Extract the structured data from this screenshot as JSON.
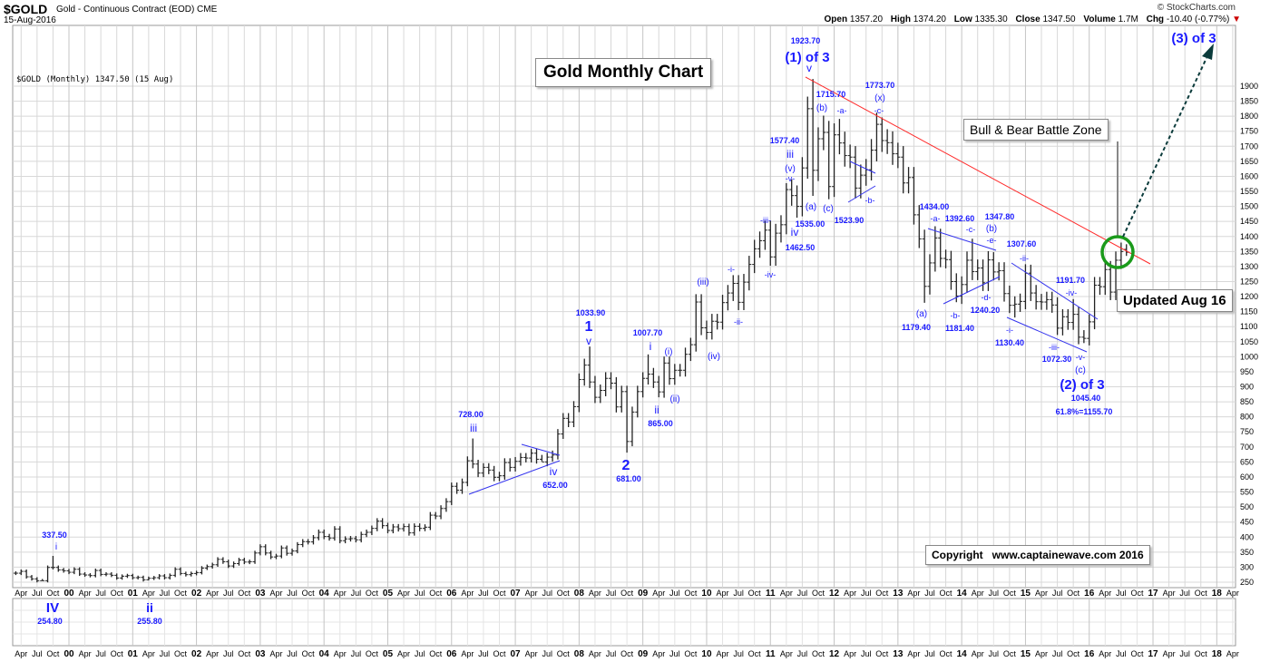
{
  "header": {
    "symbol": "$GOLD",
    "description": "Gold - Continuous Contract (EOD) CME",
    "date": "15-Aug-2016",
    "brand": "© StockCharts.com",
    "open_label": "Open",
    "open": "1357.20",
    "high_label": "High",
    "high": "1374.20",
    "low_label": "Low",
    "low": "1335.30",
    "close_label": "Close",
    "close": "1347.50",
    "volume_label": "Volume",
    "volume": "1.7M",
    "chg_label": "Chg",
    "chg": "-10.40 (-0.77%)",
    "chg_direction": "down"
  },
  "chart_data": {
    "type": "ohlc-bar",
    "title": "Gold Monthly Chart",
    "legend": "$GOLD (Monthly) 1347.50 (15 Aug)",
    "period": "monthly",
    "start_month": "1999-03",
    "end_month": "2016-08",
    "closes": {
      "1999": [
        280,
        286,
        268,
        261,
        255,
        255,
        299,
        299,
        291,
        288
      ],
      "2000": [
        283,
        293,
        277,
        274,
        272,
        289,
        276,
        277,
        273,
        264,
        270,
        272
      ],
      "2001": [
        265,
        266,
        258,
        263,
        265,
        271,
        265,
        273,
        293,
        279,
        275,
        279
      ],
      "2002": [
        282,
        297,
        302,
        308,
        326,
        318,
        304,
        312,
        324,
        317,
        318,
        347
      ],
      "2003": [
        368,
        347,
        334,
        337,
        364,
        346,
        354,
        375,
        385,
        384,
        398,
        416
      ],
      "2004": [
        402,
        397,
        427,
        388,
        394,
        395,
        391,
        409,
        416,
        429,
        453,
        438
      ],
      "2005": [
        422,
        434,
        428,
        435,
        414,
        436,
        429,
        433,
        473,
        470,
        495,
        518
      ],
      "2006": [
        569,
        556,
        582,
        654,
        643,
        613,
        632,
        623,
        599,
        604,
        648,
        632
      ],
      "2007": [
        652,
        665,
        663,
        679,
        659,
        650,
        666,
        673,
        743,
        795,
        783,
        834
      ],
      "2008": [
        924,
        972,
        916,
        865,
        888,
        928,
        912,
        833,
        884,
        718,
        816,
        884
      ],
      "2009": [
        928,
        942,
        916,
        883,
        979,
        927,
        955,
        955,
        1008,
        1040,
        1182,
        1096
      ],
      "2010": [
        1081,
        1118,
        1115,
        1180,
        1212,
        1244,
        1181,
        1248,
        1307,
        1359,
        1386,
        1421
      ],
      "2011": [
        1332,
        1411,
        1439,
        1556,
        1536,
        1500,
        1628,
        1825,
        1620,
        1725,
        1746,
        1566
      ],
      "2012": [
        1738,
        1711,
        1669,
        1664,
        1561,
        1604,
        1622,
        1687,
        1773,
        1719,
        1712,
        1675
      ],
      "2013": [
        1664,
        1578,
        1596,
        1472,
        1392,
        1234,
        1312,
        1395,
        1327,
        1323,
        1250,
        1202
      ],
      "2014": [
        1240,
        1321,
        1283,
        1295,
        1246,
        1322,
        1282,
        1286,
        1210,
        1171,
        1175,
        1184
      ],
      "2015": [
        1278,
        1212,
        1183,
        1182,
        1190,
        1172,
        1095,
        1133,
        1114,
        1141,
        1065,
        1061
      ],
      "2016": [
        1116,
        1238,
        1233,
        1290,
        1215,
        1321,
        1350,
        1347.5
      ]
    },
    "pivots": [
      {
        "month": "1999-08",
        "type": "low",
        "price": 254.8
      },
      {
        "month": "1999-10",
        "type": "high",
        "price": 337.5
      },
      {
        "month": "2001-04",
        "type": "low",
        "price": 255.8
      },
      {
        "month": "2006-05",
        "type": "high",
        "price": 728.0
      },
      {
        "month": "2007-06",
        "type": "low",
        "price": 652.0
      },
      {
        "month": "2008-03",
        "type": "high",
        "price": 1033.9
      },
      {
        "month": "2008-10",
        "type": "low",
        "price": 681.0
      },
      {
        "month": "2009-02",
        "type": "high",
        "price": 1007.7
      },
      {
        "month": "2009-04",
        "type": "low",
        "price": 865.0
      },
      {
        "month": "2011-04",
        "type": "high",
        "price": 1577.4
      },
      {
        "month": "2011-06",
        "type": "low",
        "price": 1462.5
      },
      {
        "month": "2011-09",
        "type": "high",
        "price": 1923.7
      },
      {
        "month": "2011-09",
        "type": "low",
        "price": 1535.0
      },
      {
        "month": "2011-12",
        "type": "low",
        "price": 1523.9
      },
      {
        "month": "2011-11",
        "type": "high",
        "price": 1802.0
      },
      {
        "month": "2012-10",
        "type": "high",
        "price": 1796.0
      },
      {
        "month": "2012-02",
        "type": "high",
        "price": 1791.0
      },
      {
        "month": "2013-06",
        "type": "low",
        "price": 1179.4
      },
      {
        "month": "2013-08",
        "type": "high",
        "price": 1434.0
      },
      {
        "month": "2013-12",
        "type": "low",
        "price": 1181.4
      },
      {
        "month": "2014-03",
        "type": "high",
        "price": 1392.6
      },
      {
        "month": "2014-07",
        "type": "high",
        "price": 1347.8
      },
      {
        "month": "2014-11",
        "type": "low",
        "price": 1130.4
      },
      {
        "month": "2015-01",
        "type": "high",
        "price": 1307.6
      },
      {
        "month": "2015-07",
        "type": "low",
        "price": 1072.3
      },
      {
        "month": "2015-10",
        "type": "high",
        "price": 1191.7
      },
      {
        "month": "2015-12",
        "type": "low",
        "price": 1045.4
      },
      {
        "month": "2016-08",
        "type": "high",
        "price": 1374.2
      },
      {
        "month": "2016-08",
        "type": "low",
        "price": 1335.3
      }
    ],
    "ylim": [
      250,
      1900
    ],
    "y_scale": "linear",
    "y_ticks": [
      "250",
      "300",
      "350",
      "400",
      "450",
      "500",
      "550",
      "600",
      "650",
      "700",
      "750",
      "800",
      "850",
      "900",
      "950",
      "1000",
      "1050",
      "1100",
      "1150",
      "1200",
      "1250",
      "1300",
      "1350",
      "1400",
      "1450",
      "1500",
      "1550",
      "1600",
      "1650",
      "1700",
      "1750",
      "1800",
      "1850",
      "1900"
    ],
    "x_tick_labels": [
      "Apr",
      "Jul",
      "Oct",
      "00",
      "Apr",
      "Jul",
      "Oct",
      "01",
      "Apr",
      "Jul",
      "Oct",
      "02",
      "Apr",
      "Jul",
      "Oct",
      "03",
      "Apr",
      "Jul",
      "Oct",
      "04",
      "Apr",
      "Jul",
      "Oct",
      "05",
      "Apr",
      "Jul",
      "Oct",
      "06",
      "Apr",
      "Jul",
      "Oct",
      "07",
      "Apr",
      "Jul",
      "Oct",
      "08",
      "Apr",
      "Jul",
      "Oct",
      "09",
      "Apr",
      "Jul",
      "Oct",
      "10",
      "Apr",
      "Jul",
      "Oct",
      "11",
      "Apr",
      "Jul",
      "Oct",
      "12",
      "Apr",
      "Jul",
      "Oct",
      "13",
      "Apr",
      "Jul",
      "Oct",
      "14",
      "Apr",
      "Jul",
      "Oct",
      "15",
      "Apr",
      "Jul",
      "Oct",
      "16",
      "Apr",
      "Jul",
      "Oct",
      "17",
      "Apr",
      "Jul",
      "Oct",
      "18",
      "Apr"
    ],
    "grid": true,
    "colors": {
      "bars": "#222222",
      "annotation": "#1a1aff",
      "trendline": "#ff2a2a",
      "wave_lines": "#3333ee",
      "circle": "#1a9a1a",
      "arrow": "#0b3b3b",
      "grid": "#d8d8d8"
    },
    "annotations": [
      {
        "text": "337.50"
      },
      {
        "text": "i"
      },
      {
        "text": "IV"
      },
      {
        "text": "254.80"
      },
      {
        "text": "ii"
      },
      {
        "text": "255.80"
      },
      {
        "text": "728.00"
      },
      {
        "text": "iii"
      },
      {
        "text": "iv"
      },
      {
        "text": "652.00"
      },
      {
        "text": "1033.90"
      },
      {
        "text": "1"
      },
      {
        "text": "v"
      },
      {
        "text": "2"
      },
      {
        "text": "681.00"
      },
      {
        "text": "1007.70"
      },
      {
        "text": "i"
      },
      {
        "text": "(i)"
      },
      {
        "text": "ii"
      },
      {
        "text": "865.00"
      },
      {
        "text": "(ii)"
      },
      {
        "text": "(iii)"
      },
      {
        "text": "(iv)"
      },
      {
        "text": "-i-"
      },
      {
        "text": "-ii-"
      },
      {
        "text": "-iii-"
      },
      {
        "text": "-iv-"
      },
      {
        "text": "1577.40"
      },
      {
        "text": "iii"
      },
      {
        "text": "(v)"
      },
      {
        "text": "-v-"
      },
      {
        "text": "iv"
      },
      {
        "text": "1462.50"
      },
      {
        "text": "(a)"
      },
      {
        "text": "1535.00"
      },
      {
        "text": "(c)"
      },
      {
        "text": "1523.90"
      },
      {
        "text": "1923.70"
      },
      {
        "text": "(1) of 3"
      },
      {
        "text": "v"
      },
      {
        "text": "1715.70"
      },
      {
        "text": "(b)"
      },
      {
        "text": "-a-"
      },
      {
        "text": "-b-"
      },
      {
        "text": "1773.70"
      },
      {
        "text": "(x)"
      },
      {
        "text": "-c-"
      },
      {
        "text": "1434.00"
      },
      {
        "text": "-a-"
      },
      {
        "text": "1392.60"
      },
      {
        "text": "-c-"
      },
      {
        "text": "1347.80"
      },
      {
        "text": "(b)"
      },
      {
        "text": "-e-"
      },
      {
        "text": "(a)"
      },
      {
        "text": "1179.40"
      },
      {
        "text": "-b-"
      },
      {
        "text": "1181.40"
      },
      {
        "text": "-d-"
      },
      {
        "text": "1240.20"
      },
      {
        "text": "1307.60"
      },
      {
        "text": "-ii-"
      },
      {
        "text": "-i-"
      },
      {
        "text": "1130.40"
      },
      {
        "text": "1191.70"
      },
      {
        "text": "-iv-"
      },
      {
        "text": "-iii-"
      },
      {
        "text": "1072.30"
      },
      {
        "text": "-v-"
      },
      {
        "text": "(c)"
      },
      {
        "text": "(2) of 3"
      },
      {
        "text": "1045.40"
      },
      {
        "text": "61.8%=1155.70"
      },
      {
        "text": "(3) of 3"
      }
    ],
    "text_boxes": {
      "title": "Gold Monthly Chart",
      "battle_zone": "Bull & Bear Battle Zone",
      "updated": "Updated Aug 16",
      "copyright": "Copyright   www.captainewave.com 2016"
    }
  }
}
